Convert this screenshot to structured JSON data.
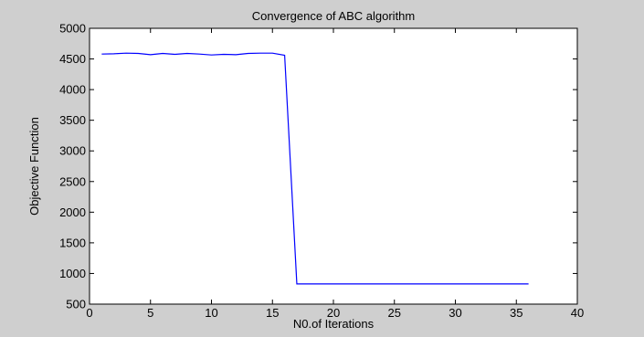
{
  "chart_data": {
    "type": "line",
    "title": "Convergence of ABC algorithm",
    "xlabel": "N0.of Iterations",
    "ylabel": "Objective Function",
    "xlim": [
      0,
      40
    ],
    "ylim": [
      500,
      5000
    ],
    "xticks": [
      0,
      5,
      10,
      15,
      20,
      25,
      30,
      35,
      40
    ],
    "yticks": [
      500,
      1000,
      1500,
      2000,
      2500,
      3000,
      3500,
      4000,
      4500,
      5000
    ],
    "grid": false,
    "series": [
      {
        "color": "#0000ff",
        "x": [
          1,
          2,
          3,
          4,
          5,
          6,
          7,
          8,
          9,
          10,
          11,
          12,
          13,
          14,
          15,
          16,
          17,
          18,
          19,
          20,
          21,
          22,
          23,
          24,
          25,
          26,
          27,
          28,
          29,
          30,
          31,
          32,
          33,
          34,
          35,
          36
        ],
        "y": [
          4580,
          4585,
          4595,
          4590,
          4570,
          4590,
          4575,
          4590,
          4580,
          4565,
          4575,
          4570,
          4590,
          4595,
          4595,
          4560,
          830,
          830,
          830,
          830,
          830,
          830,
          830,
          830,
          830,
          830,
          830,
          830,
          830,
          830,
          830,
          830,
          830,
          830,
          830,
          830
        ]
      }
    ]
  }
}
